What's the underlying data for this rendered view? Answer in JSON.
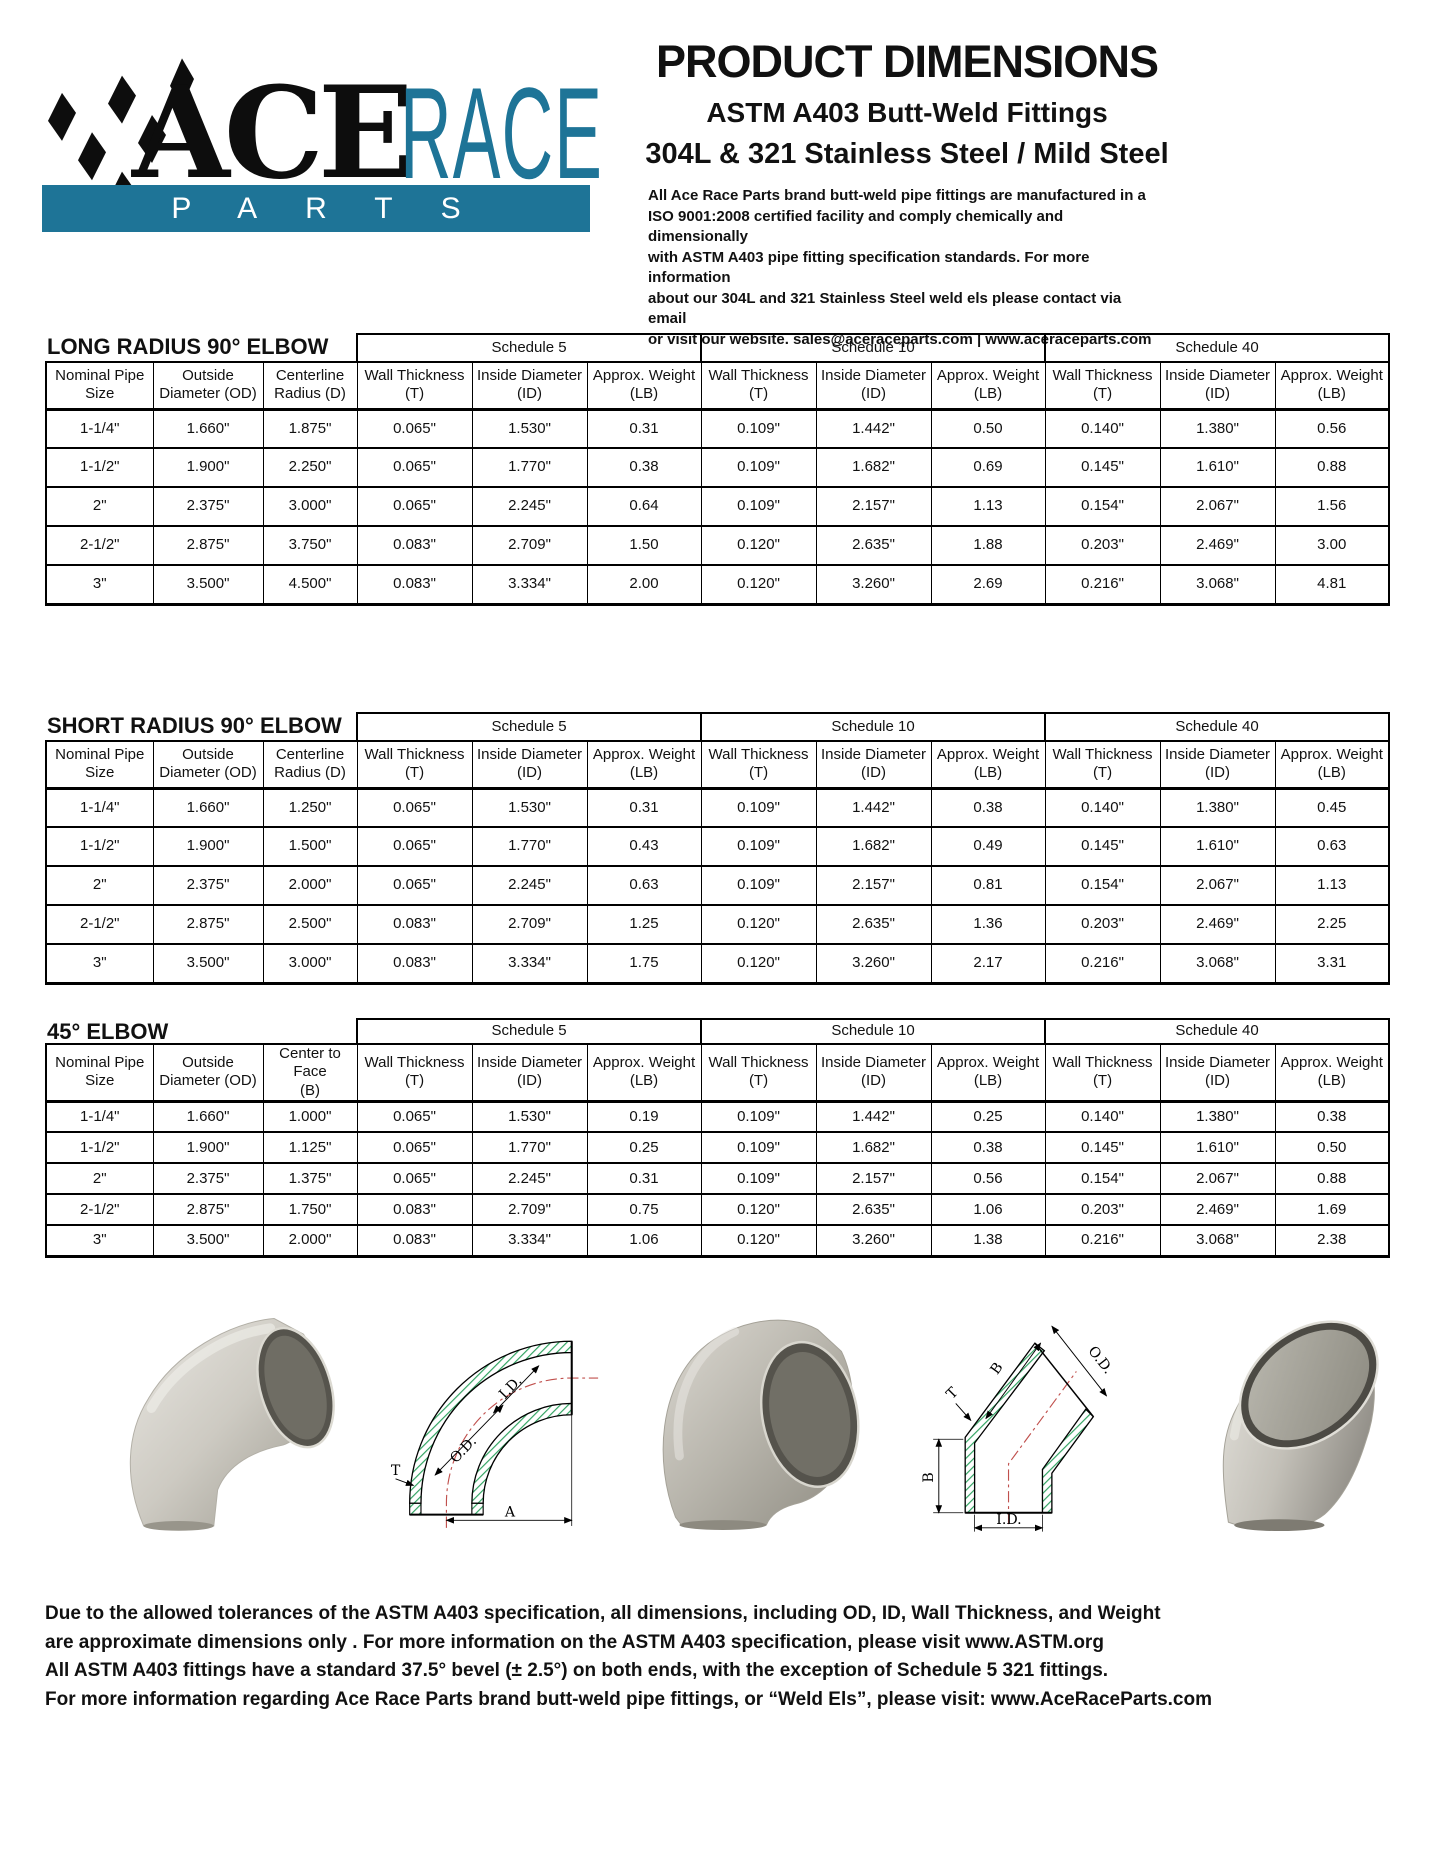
{
  "logo": {
    "ace": "ACE",
    "race": "RACE",
    "parts": "PARTS",
    "teal": "#1e7497"
  },
  "header": {
    "title": "PRODUCT DIMENSIONS",
    "subtitle1": "ASTM A403 Butt-Weld Fittings",
    "subtitle2": "304L & 321 Stainless Steel / Mild Steel",
    "intro_lines": [
      "All Ace Race Parts brand butt-weld pipe fittings are manufactured in a",
      "ISO 9001:2008 certified facility and comply chemically and dimensionally",
      "with ASTM A403 pipe fitting specification standards. For more information",
      "about our 304L and 321 Stainless Steel weld els please contact via email",
      "or visit our website. sales@aceraceparts.com | www.aceraceparts.com"
    ]
  },
  "tables": [
    {
      "title": "LONG RADIUS 90° ELBOW",
      "schedules": [
        "Schedule 5",
        "Schedule 10",
        "Schedule 40"
      ],
      "base_headers": [
        [
          "Nominal Pipe",
          "Size"
        ],
        [
          "Outside",
          "Diameter (OD)"
        ],
        [
          "Centerline",
          "Radius (D)"
        ]
      ],
      "schedule_headers": [
        [
          "Wall Thickness",
          "(T)"
        ],
        [
          "Inside Diameter",
          "(ID)"
        ],
        [
          "Approx. Weight",
          "(LB)"
        ]
      ],
      "rows": [
        [
          "1-1/4\"",
          "1.660\"",
          "1.875\"",
          "0.065\"",
          "1.530\"",
          "0.31",
          "0.109\"",
          "1.442\"",
          "0.50",
          "0.140\"",
          "1.380\"",
          "0.56"
        ],
        [
          "1-1/2\"",
          "1.900\"",
          "2.250\"",
          "0.065\"",
          "1.770\"",
          "0.38",
          "0.109\"",
          "1.682\"",
          "0.69",
          "0.145\"",
          "1.610\"",
          "0.88"
        ],
        [
          "2\"",
          "2.375\"",
          "3.000\"",
          "0.065\"",
          "2.245\"",
          "0.64",
          "0.109\"",
          "2.157\"",
          "1.13",
          "0.154\"",
          "2.067\"",
          "1.56"
        ],
        [
          "2-1/2\"",
          "2.875\"",
          "3.750\"",
          "0.083\"",
          "2.709\"",
          "1.50",
          "0.120\"",
          "2.635\"",
          "1.88",
          "0.203\"",
          "2.469\"",
          "3.00"
        ],
        [
          "3\"",
          "3.500\"",
          "4.500\"",
          "0.083\"",
          "3.334\"",
          "2.00",
          "0.120\"",
          "3.260\"",
          "2.69",
          "0.216\"",
          "3.068\"",
          "4.81"
        ]
      ]
    },
    {
      "title": "SHORT RADIUS 90° ELBOW",
      "schedules": [
        "Schedule 5",
        "Schedule 10",
        "Schedule 40"
      ],
      "base_headers": [
        [
          "Nominal Pipe",
          "Size"
        ],
        [
          "Outside",
          "Diameter (OD)"
        ],
        [
          "Centerline",
          "Radius (D)"
        ]
      ],
      "schedule_headers": [
        [
          "Wall Thickness",
          "(T)"
        ],
        [
          "Inside Diameter",
          "(ID)"
        ],
        [
          "Approx. Weight",
          "(LB)"
        ]
      ],
      "rows": [
        [
          "1-1/4\"",
          "1.660\"",
          "1.250\"",
          "0.065\"",
          "1.530\"",
          "0.31",
          "0.109\"",
          "1.442\"",
          "0.38",
          "0.140\"",
          "1.380\"",
          "0.45"
        ],
        [
          "1-1/2\"",
          "1.900\"",
          "1.500\"",
          "0.065\"",
          "1.770\"",
          "0.43",
          "0.109\"",
          "1.682\"",
          "0.49",
          "0.145\"",
          "1.610\"",
          "0.63"
        ],
        [
          "2\"",
          "2.375\"",
          "2.000\"",
          "0.065\"",
          "2.245\"",
          "0.63",
          "0.109\"",
          "2.157\"",
          "0.81",
          "0.154\"",
          "2.067\"",
          "1.13"
        ],
        [
          "2-1/2\"",
          "2.875\"",
          "2.500\"",
          "0.083\"",
          "2.709\"",
          "1.25",
          "0.120\"",
          "2.635\"",
          "1.36",
          "0.203\"",
          "2.469\"",
          "2.25"
        ],
        [
          "3\"",
          "3.500\"",
          "3.000\"",
          "0.083\"",
          "3.334\"",
          "1.75",
          "0.120\"",
          "3.260\"",
          "2.17",
          "0.216\"",
          "3.068\"",
          "3.31"
        ]
      ]
    },
    {
      "title": "45° ELBOW",
      "schedules": [
        "Schedule 5",
        "Schedule 10",
        "Schedule 40"
      ],
      "base_headers": [
        [
          "Nominal Pipe",
          "Size"
        ],
        [
          "Outside",
          "Diameter (OD)"
        ],
        [
          "Center to Face",
          "(B)"
        ]
      ],
      "schedule_headers": [
        [
          "Wall Thickness",
          "(T)"
        ],
        [
          "Inside Diameter",
          "(ID)"
        ],
        [
          "Approx. Weight",
          "(LB)"
        ]
      ],
      "rows": [
        [
          "1-1/4\"",
          "1.660\"",
          "1.000\"",
          "0.065\"",
          "1.530\"",
          "0.19",
          "0.109\"",
          "1.442\"",
          "0.25",
          "0.140\"",
          "1.380\"",
          "0.38"
        ],
        [
          "1-1/2\"",
          "1.900\"",
          "1.125\"",
          "0.065\"",
          "1.770\"",
          "0.25",
          "0.109\"",
          "1.682\"",
          "0.38",
          "0.145\"",
          "1.610\"",
          "0.50"
        ],
        [
          "2\"",
          "2.375\"",
          "1.375\"",
          "0.065\"",
          "2.245\"",
          "0.31",
          "0.109\"",
          "2.157\"",
          "0.56",
          "0.154\"",
          "2.067\"",
          "0.88"
        ],
        [
          "2-1/2\"",
          "2.875\"",
          "1.750\"",
          "0.083\"",
          "2.709\"",
          "0.75",
          "0.120\"",
          "2.635\"",
          "1.06",
          "0.203\"",
          "2.469\"",
          "1.69"
        ],
        [
          "3\"",
          "3.500\"",
          "2.000\"",
          "0.083\"",
          "3.334\"",
          "1.06",
          "0.120\"",
          "3.260\"",
          "1.38",
          "0.216\"",
          "3.068\"",
          "2.38"
        ]
      ]
    }
  ],
  "figures": {
    "diagram_90": {
      "labels": {
        "id": "I.D.",
        "od": "O.D.",
        "t": "T",
        "a": "A"
      }
    },
    "diagram_45": {
      "labels": {
        "b_top": "B",
        "od": "O.D.",
        "t": "T",
        "b_side": "B",
        "id": "I.D."
      }
    }
  },
  "footer": {
    "lines": [
      "Due to the allowed tolerances of the ASTM A403 specification, all dimensions, including OD, ID, Wall Thickness, and Weight",
      "are approximate dimensions only . For more information on the ASTM A403 specification, please visit www.ASTM.org",
      "All ASTM A403 fittings have a standard 37.5° bevel (± 2.5°) on both ends, with the exception of Schedule 5 321 fittings.",
      "For more information regarding Ace Race Parts brand butt-weld pipe fittings, or “Weld Els”, please visit: www.AceRaceParts.com"
    ]
  }
}
